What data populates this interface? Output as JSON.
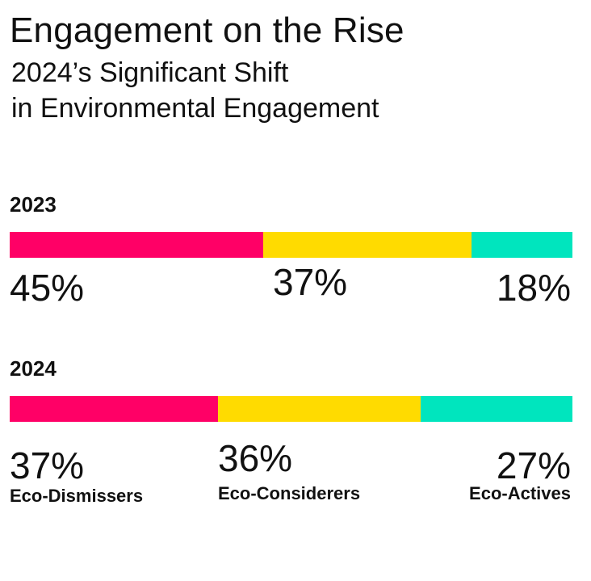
{
  "title": "Engagement on the Rise",
  "subtitle": "2024’s Significant Shift\nin Environmental Engagement",
  "colors": {
    "Eco-Dismissers": "#ff0066",
    "Eco-Considerers": "#ffdb00",
    "Eco-Actives": "#00e5be"
  },
  "chart_data": {
    "type": "bar",
    "orientation": "horizontal-stacked-100",
    "categories": [
      "2023",
      "2024"
    ],
    "series": [
      {
        "name": "Eco-Dismissers",
        "values": [
          45,
          37
        ],
        "labels": [
          "45%",
          "37%"
        ]
      },
      {
        "name": "Eco-Considerers",
        "values": [
          37,
          36
        ],
        "labels": [
          "37%",
          "36%"
        ]
      },
      {
        "name": "Eco-Actives",
        "values": [
          18,
          27
        ],
        "labels": [
          "18%",
          "27%"
        ]
      }
    ],
    "xlim": [
      0,
      100
    ]
  }
}
